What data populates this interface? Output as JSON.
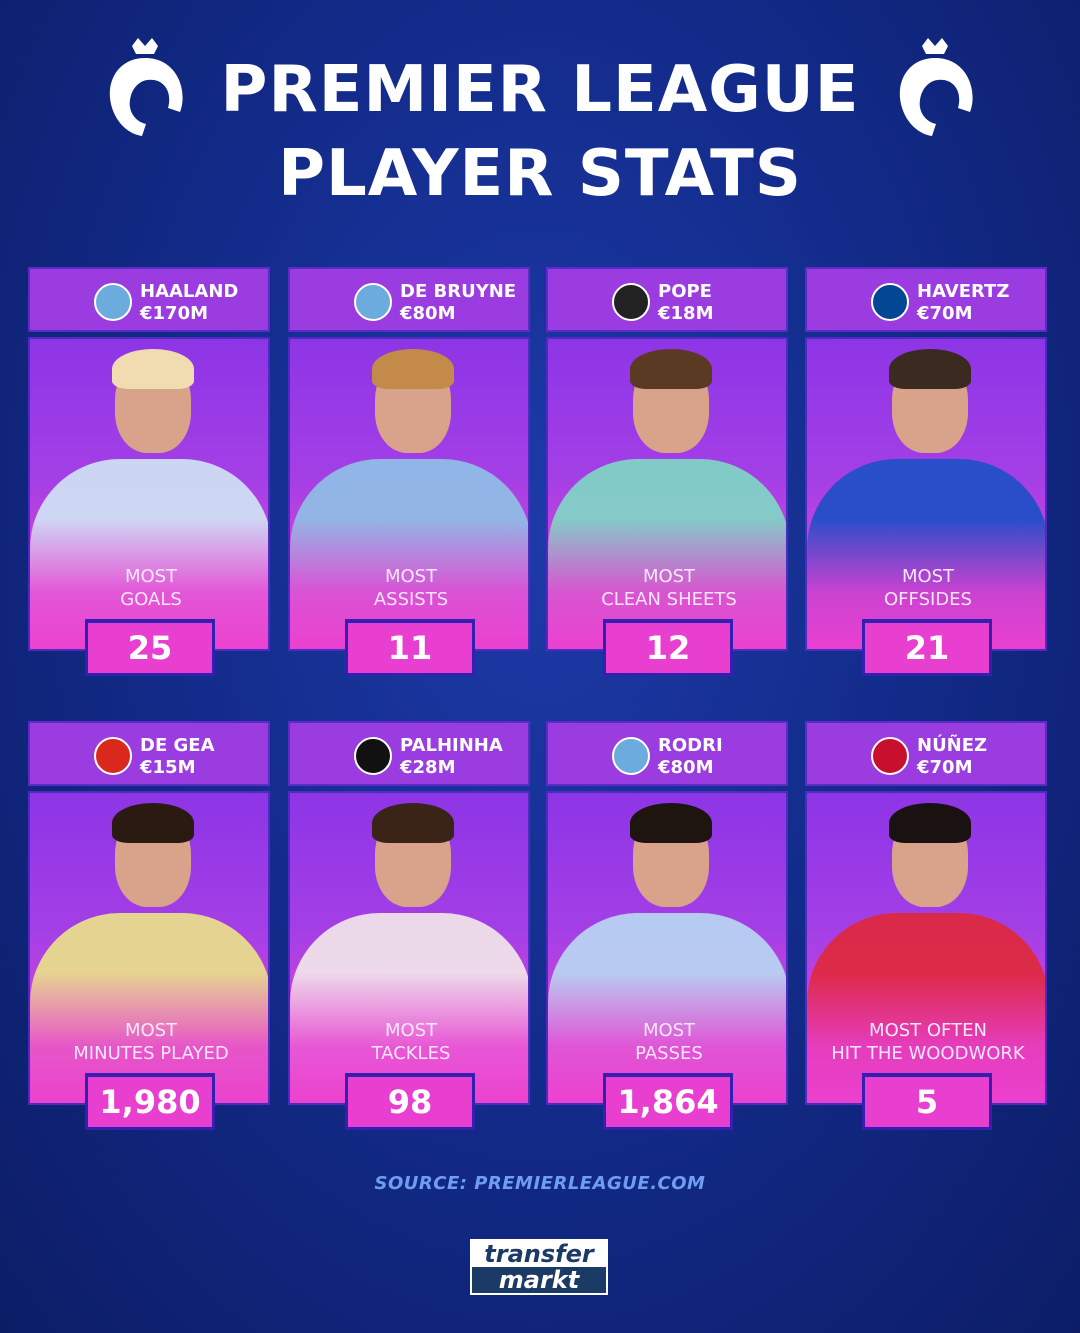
{
  "title": {
    "line1": "PREMIER LEAGUE",
    "line2": "PLAYER STATS"
  },
  "colors": {
    "background": "#132c8c",
    "card_header": "#9b3ce0",
    "stat_box": "#e93fd0",
    "source_text": "#6f9df0"
  },
  "cards": [
    {
      "player": "HAALAND",
      "value": "€170M",
      "club_crest": "manchester-city-crest-icon",
      "crest_color": "#6cabdd",
      "stat_label": [
        "MOST",
        "GOALS"
      ],
      "stat": "25",
      "shirt": "#cfe3f5",
      "hair": "#f0dcb0"
    },
    {
      "player": "DE BRUYNE",
      "value": "€80M",
      "club_crest": "manchester-city-crest-icon",
      "crest_color": "#6cabdd",
      "stat_label": [
        "MOST",
        "ASSISTS"
      ],
      "stat": "11",
      "shirt": "#8fbfe6",
      "hair": "#c48a4a"
    },
    {
      "player": "POPE",
      "value": "€18M",
      "club_crest": "newcastle-crest-icon",
      "crest_color": "#222222",
      "stat_label": [
        "MOST",
        "CLEAN SHEETS"
      ],
      "stat": "12",
      "shirt": "#7fd6c6",
      "hair": "#5a3a22"
    },
    {
      "player": "HAVERTZ",
      "value": "€70M",
      "club_crest": "chelsea-crest-icon",
      "crest_color": "#034694",
      "stat_label": [
        "MOST",
        "OFFSIDES"
      ],
      "stat": "21",
      "shirt": "#1e4fc7",
      "hair": "#3a2a20"
    },
    {
      "player": "DE GEA",
      "value": "€15M",
      "club_crest": "manchester-united-crest-icon",
      "crest_color": "#da291c",
      "stat_label": [
        "MOST",
        "MINUTES PLAYED"
      ],
      "stat": "1,980",
      "shirt": "#e9df8a",
      "hair": "#2a1a12"
    },
    {
      "player": "PALHINHA",
      "value": "€28M",
      "club_crest": "fulham-crest-icon",
      "crest_color": "#111111",
      "stat_label": [
        "MOST",
        "TACKLES"
      ],
      "stat": "98",
      "shirt": "#f1e6ea",
      "hair": "#3a2418"
    },
    {
      "player": "RODRI",
      "value": "€80M",
      "club_crest": "manchester-city-crest-icon",
      "crest_color": "#6cabdd",
      "stat_label": [
        "MOST",
        "PASSES"
      ],
      "stat": "1,864",
      "shirt": "#b9d6f2",
      "hair": "#1e1410"
    },
    {
      "player": "NÚÑEZ",
      "value": "€70M",
      "club_crest": "liverpool-crest-icon",
      "crest_color": "#c8102e",
      "stat_label": [
        "MOST OFTEN",
        "HIT THE WOODWORK"
      ],
      "stat": "5",
      "shirt": "#e0283c",
      "hair": "#1a1210"
    }
  ],
  "source": "SOURCE: PREMIERLEAGUE.COM",
  "logo": {
    "line1": "transfer",
    "line2": "markt"
  }
}
